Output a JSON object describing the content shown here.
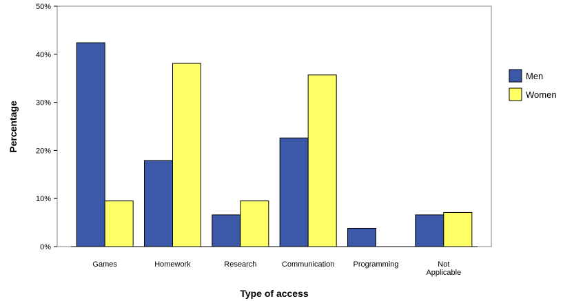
{
  "chart_data": {
    "type": "bar",
    "title": "",
    "xlabel": "Type of access",
    "ylabel": "Percentage",
    "categories": [
      "Games",
      "Homework",
      "Research",
      "Communication",
      "Programming",
      "Not Applicable"
    ],
    "series": [
      {
        "name": "Men",
        "color": "#3C58A8",
        "values": [
          42.4,
          17.9,
          6.6,
          22.6,
          3.8,
          6.6
        ]
      },
      {
        "name": "Women",
        "color": "#FFFF66",
        "values": [
          9.5,
          38.1,
          9.5,
          35.7,
          0.0,
          7.1
        ]
      }
    ],
    "ylim": [
      0,
      50
    ],
    "yticks": [
      {
        "value": 0,
        "label": "0%"
      },
      {
        "value": 10,
        "label": "10%"
      },
      {
        "value": 20,
        "label": "20%"
      },
      {
        "value": 30,
        "label": "30%"
      },
      {
        "value": 40,
        "label": "40%"
      },
      {
        "value": 50,
        "label": "50%"
      }
    ],
    "grid": false,
    "legend_position": "right"
  }
}
